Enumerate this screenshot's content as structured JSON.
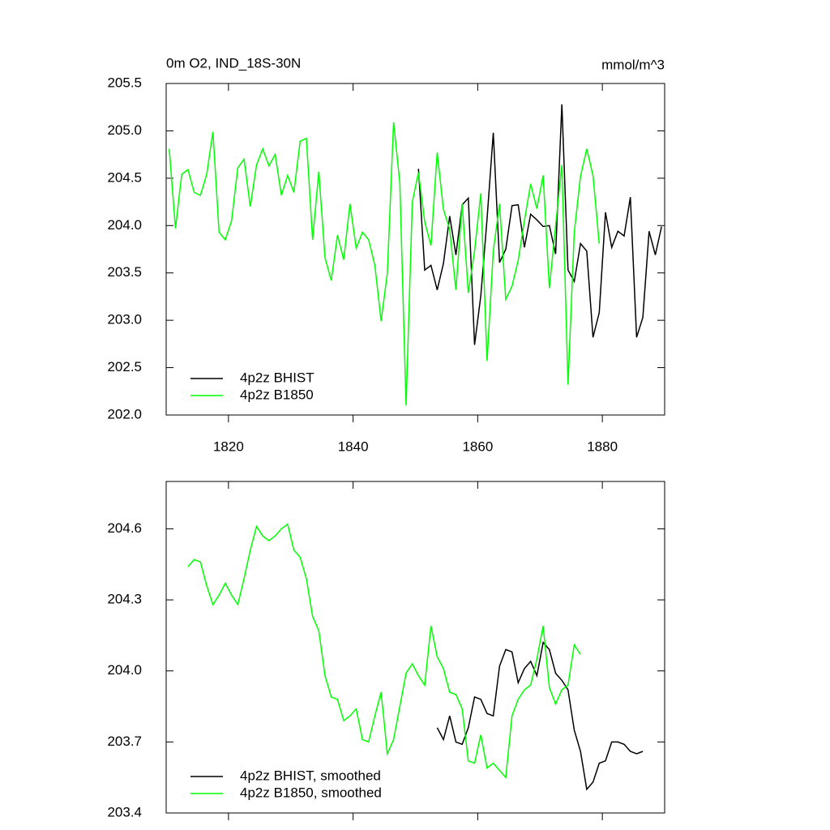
{
  "chart_data": [
    {
      "type": "line",
      "title": "0m O2, IND_18S-30N",
      "units": "mmol/m^3",
      "xlim": [
        1810,
        1890
      ],
      "xticks": [
        1820,
        1840,
        1860,
        1880
      ],
      "show_xtick_labels": true,
      "ylim": [
        202.0,
        205.5
      ],
      "yticks": [
        {
          "value": 202.0,
          "label": "202.0"
        },
        202.5,
        {
          "value": 203.0,
          "label": "203.0"
        },
        203.5,
        {
          "value": 204.0,
          "label": "204.0"
        },
        204.5,
        {
          "value": 205.0,
          "label": "205.0"
        },
        205.5
      ],
      "legend": "lower left",
      "series": [
        {
          "name": "4p2z BHIST",
          "color": "#000000",
          "x": [
            1850.5,
            1851.5,
            1852.5,
            1853.5,
            1854.5,
            1855.5,
            1856.5,
            1857.5,
            1858.5,
            1859.5,
            1860.5,
            1861.5,
            1862.5,
            1863.5,
            1864.5,
            1865.5,
            1866.5,
            1867.5,
            1868.5,
            1869.5,
            1870.5,
            1871.5,
            1872.5,
            1873.5,
            1874.5,
            1875.5,
            1876.5,
            1877.5,
            1878.5,
            1879.5,
            1880.5,
            1881.5,
            1882.5,
            1883.5,
            1884.5,
            1885.5,
            1886.5,
            1887.5,
            1888.5,
            1889.5
          ],
          "values": [
            204.6,
            203.53,
            203.58,
            203.32,
            203.6,
            204.1,
            203.69,
            204.22,
            204.29,
            202.74,
            203.26,
            204.07,
            204.98,
            203.61,
            203.75,
            204.21,
            204.22,
            203.77,
            204.12,
            204.06,
            203.99,
            204.0,
            203.7,
            205.28,
            203.53,
            203.41,
            203.81,
            203.73,
            202.82,
            203.08,
            204.14,
            203.77,
            203.94,
            203.89,
            204.3,
            202.82,
            203.03,
            203.94,
            203.69,
            203.99
          ]
        },
        {
          "name": "4p2z B1850",
          "color": "#00ff00",
          "x": [
            1810.5,
            1811.5,
            1812.5,
            1813.5,
            1814.5,
            1815.5,
            1816.5,
            1817.5,
            1818.5,
            1819.5,
            1820.5,
            1821.5,
            1822.5,
            1823.5,
            1824.5,
            1825.5,
            1826.5,
            1827.5,
            1828.5,
            1829.5,
            1830.5,
            1831.5,
            1832.5,
            1833.5,
            1834.5,
            1835.5,
            1836.5,
            1837.5,
            1838.5,
            1839.5,
            1840.5,
            1841.5,
            1842.5,
            1843.5,
            1844.5,
            1845.5,
            1846.5,
            1847.5,
            1848.5,
            1849.5,
            1850.5,
            1851.5,
            1852.5,
            1853.5,
            1854.5,
            1855.5,
            1856.5,
            1857.5,
            1858.5,
            1859.5,
            1860.5,
            1861.5,
            1862.5,
            1863.5,
            1864.5,
            1865.5,
            1866.5,
            1867.5,
            1868.5,
            1869.5,
            1870.5,
            1871.5,
            1872.5,
            1873.5,
            1874.5,
            1875.5,
            1876.5,
            1877.5,
            1878.5,
            1879.5
          ],
          "values": [
            204.81,
            203.97,
            204.54,
            204.59,
            204.35,
            204.32,
            204.54,
            204.99,
            203.93,
            203.85,
            204.05,
            204.61,
            204.7,
            204.2,
            204.64,
            204.81,
            204.63,
            204.75,
            204.32,
            204.53,
            204.35,
            204.89,
            204.92,
            203.85,
            204.57,
            203.66,
            203.42,
            203.9,
            203.64,
            204.23,
            203.76,
            203.93,
            203.85,
            203.58,
            202.99,
            203.5,
            205.09,
            204.45,
            202.1,
            204.25,
            204.56,
            204.04,
            203.79,
            204.77,
            204.17,
            203.96,
            203.32,
            204.23,
            203.29,
            203.73,
            204.34,
            202.57,
            203.73,
            204.23,
            203.22,
            203.36,
            203.63,
            204.05,
            204.44,
            204.18,
            204.53,
            203.34,
            204.0,
            204.64,
            202.32,
            203.93,
            204.52,
            204.81,
            204.53,
            203.81
          ]
        }
      ]
    },
    {
      "type": "line",
      "xlim": [
        1810,
        1890
      ],
      "xticks": [
        1820,
        1840,
        1860,
        1880
      ],
      "show_xtick_labels": false,
      "ylim": [
        203.4,
        204.8
      ],
      "yticks": [
        203.4,
        203.7,
        {
          "value": 204.0,
          "label": "204.0"
        },
        204.3,
        204.6
      ],
      "legend": "lower left",
      "series": [
        {
          "name": "4p2z BHIST, smoothed",
          "color": "#000000",
          "x": [
            1853.5,
            1854.5,
            1855.5,
            1856.5,
            1857.5,
            1858.5,
            1859.5,
            1860.5,
            1861.5,
            1862.5,
            1863.5,
            1864.5,
            1865.5,
            1866.5,
            1867.5,
            1868.5,
            1869.5,
            1870.5,
            1871.5,
            1872.5,
            1873.5,
            1874.5,
            1875.5,
            1876.5,
            1877.5,
            1878.5,
            1879.5,
            1880.5,
            1881.5,
            1882.5,
            1883.5,
            1884.5,
            1885.5,
            1886.5
          ],
          "values": [
            203.76,
            203.71,
            203.81,
            203.7,
            203.69,
            203.76,
            203.89,
            203.88,
            203.82,
            203.81,
            204.02,
            204.09,
            204.08,
            203.95,
            204.01,
            204.04,
            203.98,
            204.12,
            204.09,
            203.99,
            203.96,
            203.92,
            203.75,
            203.66,
            203.5,
            203.53,
            203.61,
            203.62,
            203.7,
            203.7,
            203.69,
            203.66,
            203.65,
            203.66
          ]
        },
        {
          "name": "4p2z B1850, smoothed",
          "color": "#00ff00",
          "x": [
            1813.5,
            1814.5,
            1815.5,
            1816.5,
            1817.5,
            1818.5,
            1819.5,
            1820.5,
            1821.5,
            1822.5,
            1823.5,
            1824.5,
            1825.5,
            1826.5,
            1827.5,
            1828.5,
            1829.5,
            1830.5,
            1831.5,
            1832.5,
            1833.5,
            1834.5,
            1835.5,
            1836.5,
            1837.5,
            1838.5,
            1839.5,
            1840.5,
            1841.5,
            1842.5,
            1843.5,
            1844.5,
            1845.5,
            1846.5,
            1847.5,
            1848.5,
            1849.5,
            1850.5,
            1851.5,
            1852.5,
            1853.5,
            1854.5,
            1855.5,
            1856.5,
            1857.5,
            1858.5,
            1859.5,
            1860.5,
            1861.5,
            1862.5,
            1863.5,
            1864.5,
            1865.5,
            1866.5,
            1867.5,
            1868.5,
            1869.5,
            1870.5,
            1871.5,
            1872.5,
            1873.5,
            1874.5,
            1875.5,
            1876.5
          ],
          "values": [
            204.44,
            204.47,
            204.46,
            204.36,
            204.28,
            204.32,
            204.37,
            204.32,
            204.28,
            204.39,
            204.51,
            204.61,
            204.57,
            204.55,
            204.57,
            204.6,
            204.62,
            204.51,
            204.48,
            204.39,
            204.23,
            204.17,
            203.98,
            203.89,
            203.88,
            203.79,
            203.81,
            203.84,
            203.71,
            203.7,
            203.81,
            203.91,
            203.65,
            203.71,
            203.85,
            203.99,
            204.03,
            203.98,
            203.94,
            204.19,
            204.06,
            204.01,
            203.91,
            203.9,
            203.84,
            203.62,
            203.61,
            203.73,
            203.59,
            203.61,
            203.58,
            203.55,
            203.81,
            203.88,
            203.92,
            203.94,
            204.05,
            204.19,
            203.93,
            203.86,
            203.92,
            203.94,
            204.11,
            204.07
          ]
        }
      ]
    }
  ]
}
